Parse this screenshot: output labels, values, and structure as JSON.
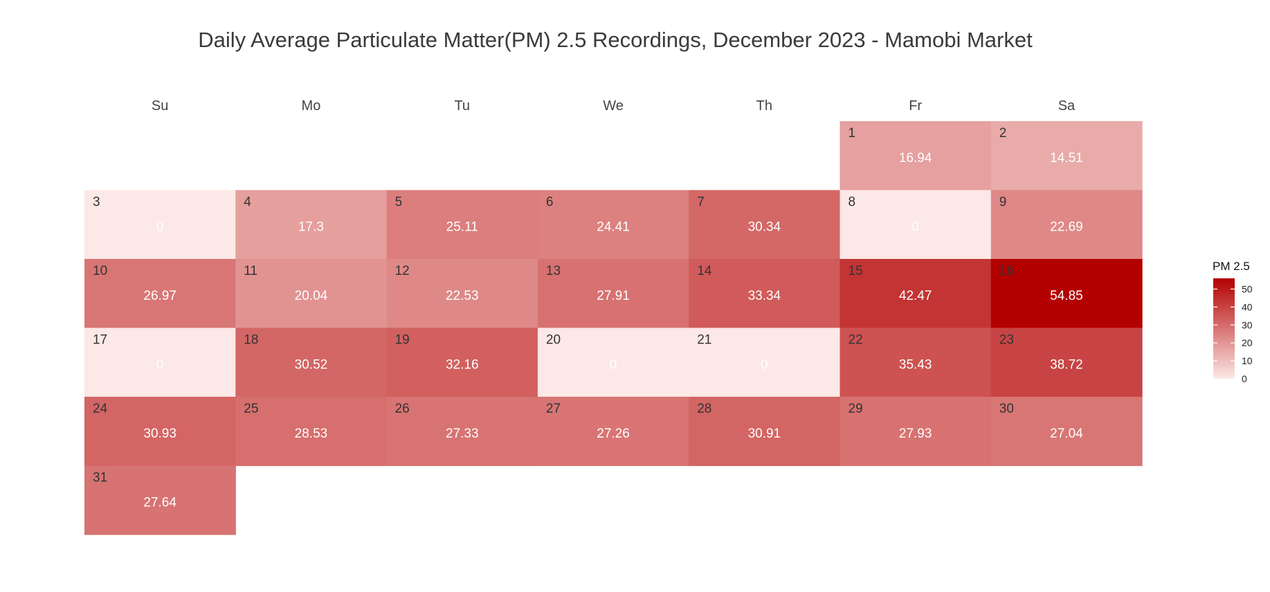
{
  "chart_data": {
    "type": "heatmap",
    "title": "Daily Average Particulate Matter(PM) 2.5 Recordings, December 2023 - Mamobi Market",
    "weekdays": [
      "Su",
      "Mo",
      "Tu",
      "We",
      "Th",
      "Fr",
      "Sa"
    ],
    "first_weekday_index": 5,
    "days": [
      1,
      2,
      3,
      4,
      5,
      6,
      7,
      8,
      9,
      10,
      11,
      12,
      13,
      14,
      15,
      16,
      17,
      18,
      19,
      20,
      21,
      22,
      23,
      24,
      25,
      26,
      27,
      28,
      29,
      30,
      31
    ],
    "values": [
      "16.94",
      "14.51",
      "0",
      "17.3",
      "25.11",
      "24.41",
      "30.34",
      "0",
      "22.69",
      "26.97",
      "20.04",
      "22.53",
      "27.91",
      "33.34",
      "42.47",
      "54.85",
      "0",
      "30.52",
      "32.16",
      "0",
      "0",
      "35.43",
      "38.72",
      "30.93",
      "28.53",
      "27.33",
      "27.26",
      "30.91",
      "27.93",
      "27.04",
      "27.64"
    ],
    "legend_title": "PM 2.5",
    "legend_ticks": [
      "50",
      "40",
      "30",
      "20",
      "10",
      "0"
    ],
    "scale": {
      "min": 0,
      "max": 54.85,
      "low_color": "#fce8e6",
      "high_color": "#b30000"
    }
  }
}
